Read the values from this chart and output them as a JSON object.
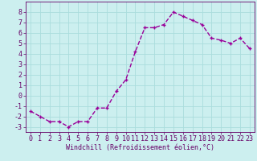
{
  "x": [
    0,
    1,
    2,
    3,
    4,
    5,
    6,
    7,
    8,
    9,
    10,
    11,
    12,
    13,
    14,
    15,
    16,
    17,
    18,
    19,
    20,
    21,
    22,
    23
  ],
  "y": [
    -1.5,
    -2.0,
    -2.5,
    -2.5,
    -3.0,
    -2.5,
    -2.5,
    -1.2,
    -1.2,
    0.4,
    1.5,
    4.2,
    6.5,
    6.5,
    6.8,
    8.0,
    7.6,
    7.2,
    6.8,
    5.5,
    5.3,
    5.0,
    5.5,
    4.5
  ],
  "line_color": "#990099",
  "marker": "+",
  "bg_color": "#ccefef",
  "grid_color": "#aadddd",
  "axis_color": "#660066",
  "xlabel": "Windchill (Refroidissement éolien,°C)",
  "ylim": [
    -3.5,
    9.0
  ],
  "xlim": [
    -0.5,
    23.5
  ],
  "yticks": [
    -3,
    -2,
    -1,
    0,
    1,
    2,
    3,
    4,
    5,
    6,
    7,
    8
  ],
  "xticks": [
    0,
    1,
    2,
    3,
    4,
    5,
    6,
    7,
    8,
    9,
    10,
    11,
    12,
    13,
    14,
    15,
    16,
    17,
    18,
    19,
    20,
    21,
    22,
    23
  ],
  "font_color": "#660066",
  "fontsize_axis": 6,
  "fontsize_tick": 6,
  "linewidth": 1.0,
  "markersize": 3.5,
  "markeredgewidth": 1.0
}
